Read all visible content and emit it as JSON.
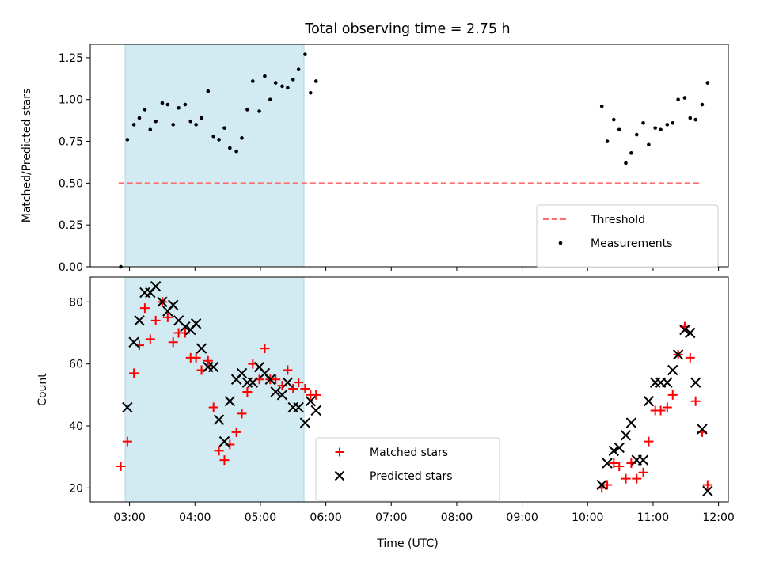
{
  "chart_data": {
    "type": "scatter",
    "title": "Total observing time = 2.75 h",
    "xlabel": "Time (UTC)",
    "x_ticks": [
      "03:00",
      "04:00",
      "05:00",
      "06:00",
      "07:00",
      "08:00",
      "09:00",
      "10:00",
      "11:00",
      "12:00"
    ],
    "xlim": [
      "02:24",
      "12:09"
    ],
    "shaded_span": [
      "02:56",
      "05:40"
    ],
    "shade_color": "#add8e6",
    "panels": [
      {
        "ylabel": "Matched/Predicted stars",
        "ylim": [
          0,
          1.33
        ],
        "y_ticks": [
          "0.00",
          "0.25",
          "0.50",
          "0.75",
          "1.00",
          "1.25"
        ],
        "legend": {
          "placement": "lower right"
        },
        "threshold": {
          "name": "Threshold",
          "value": 0.5,
          "x": [
            "02:50",
            "11:42"
          ],
          "color": "#ff6e6e"
        },
        "series": [
          {
            "name": "Measurements",
            "marker": "dot",
            "color": "#000000",
            "points": [
              [
                "02:52",
                0.0
              ],
              [
                "02:58",
                0.76
              ],
              [
                "03:04",
                0.85
              ],
              [
                "03:09",
                0.89
              ],
              [
                "03:14",
                0.94
              ],
              [
                "03:19",
                0.82
              ],
              [
                "03:24",
                0.87
              ],
              [
                "03:30",
                0.98
              ],
              [
                "03:35",
                0.97
              ],
              [
                "03:40",
                0.85
              ],
              [
                "03:45",
                0.95
              ],
              [
                "03:51",
                0.97
              ],
              [
                "03:56",
                0.87
              ],
              [
                "04:01",
                0.85
              ],
              [
                "04:06",
                0.89
              ],
              [
                "04:12",
                1.05
              ],
              [
                "04:17",
                0.78
              ],
              [
                "04:22",
                0.76
              ],
              [
                "04:27",
                0.83
              ],
              [
                "04:32",
                0.71
              ],
              [
                "04:38",
                0.69
              ],
              [
                "04:43",
                0.77
              ],
              [
                "04:48",
                0.94
              ],
              [
                "04:53",
                1.11
              ],
              [
                "04:59",
                0.93
              ],
              [
                "05:04",
                1.14
              ],
              [
                "05:09",
                1.0
              ],
              [
                "05:14",
                1.1
              ],
              [
                "05:20",
                1.08
              ],
              [
                "05:25",
                1.07
              ],
              [
                "05:30",
                1.12
              ],
              [
                "05:35",
                1.18
              ],
              [
                "05:41",
                1.27
              ],
              [
                "05:46",
                1.04
              ],
              [
                "05:51",
                1.11
              ],
              [
                "10:13",
                0.96
              ],
              [
                "10:18",
                0.75
              ],
              [
                "10:24",
                0.88
              ],
              [
                "10:29",
                0.82
              ],
              [
                "10:35",
                0.62
              ],
              [
                "10:40",
                0.68
              ],
              [
                "10:45",
                0.79
              ],
              [
                "10:51",
                0.86
              ],
              [
                "10:56",
                0.73
              ],
              [
                "11:02",
                0.83
              ],
              [
                "11:07",
                0.82
              ],
              [
                "11:13",
                0.85
              ],
              [
                "11:18",
                0.86
              ],
              [
                "11:23",
                1.0
              ],
              [
                "11:29",
                1.01
              ],
              [
                "11:34",
                0.89
              ],
              [
                "11:39",
                0.88
              ],
              [
                "11:45",
                0.97
              ],
              [
                "11:50",
                1.1
              ]
            ]
          }
        ]
      },
      {
        "ylabel": "Count",
        "ylim": [
          15.5,
          88
        ],
        "y_ticks": [
          "20",
          "40",
          "60",
          "80"
        ],
        "legend": {
          "placement": "lower center"
        },
        "series": [
          {
            "name": "Matched stars",
            "marker": "plus",
            "color": "#ff0000",
            "points": [
              [
                "02:52",
                27
              ],
              [
                "02:58",
                35
              ],
              [
                "03:04",
                57
              ],
              [
                "03:09",
                66
              ],
              [
                "03:14",
                78
              ],
              [
                "03:19",
                68
              ],
              [
                "03:24",
                74
              ],
              [
                "03:30",
                80
              ],
              [
                "03:35",
                75
              ],
              [
                "03:40",
                67
              ],
              [
                "03:45",
                70
              ],
              [
                "03:51",
                70
              ],
              [
                "03:56",
                62
              ],
              [
                "04:01",
                62
              ],
              [
                "04:06",
                58
              ],
              [
                "04:12",
                61
              ],
              [
                "04:17",
                46
              ],
              [
                "04:22",
                32
              ],
              [
                "04:27",
                29
              ],
              [
                "04:32",
                34
              ],
              [
                "04:38",
                38
              ],
              [
                "04:43",
                44
              ],
              [
                "04:48",
                51
              ],
              [
                "04:53",
                60
              ],
              [
                "04:59",
                55
              ],
              [
                "05:04",
                65
              ],
              [
                "05:09",
                55
              ],
              [
                "05:14",
                55
              ],
              [
                "05:20",
                53
              ],
              [
                "05:25",
                58
              ],
              [
                "05:30",
                52
              ],
              [
                "05:35",
                54
              ],
              [
                "05:41",
                52
              ],
              [
                "05:46",
                50
              ],
              [
                "05:51",
                50
              ],
              [
                "10:13",
                20
              ],
              [
                "10:18",
                21
              ],
              [
                "10:24",
                28
              ],
              [
                "10:29",
                27
              ],
              [
                "10:35",
                23
              ],
              [
                "10:40",
                28
              ],
              [
                "10:45",
                23
              ],
              [
                "10:51",
                25
              ],
              [
                "10:56",
                35
              ],
              [
                "11:02",
                45
              ],
              [
                "11:07",
                45
              ],
              [
                "11:13",
                46
              ],
              [
                "11:18",
                50
              ],
              [
                "11:23",
                63
              ],
              [
                "11:29",
                72
              ],
              [
                "11:34",
                62
              ],
              [
                "11:39",
                48
              ],
              [
                "11:45",
                38
              ],
              [
                "11:50",
                21
              ]
            ]
          },
          {
            "name": "Predicted stars",
            "marker": "x",
            "color": "#000000",
            "points": [
              [
                "02:58",
                46
              ],
              [
                "03:04",
                67
              ],
              [
                "03:09",
                74
              ],
              [
                "03:14",
                83
              ],
              [
                "03:19",
                83
              ],
              [
                "03:24",
                85
              ],
              [
                "03:30",
                80
              ],
              [
                "03:35",
                77
              ],
              [
                "03:40",
                79
              ],
              [
                "03:45",
                74
              ],
              [
                "03:51",
                72
              ],
              [
                "03:56",
                71
              ],
              [
                "04:01",
                73
              ],
              [
                "04:06",
                65
              ],
              [
                "04:12",
                59
              ],
              [
                "04:17",
                59
              ],
              [
                "04:22",
                42
              ],
              [
                "04:27",
                35
              ],
              [
                "04:32",
                48
              ],
              [
                "04:38",
                55
              ],
              [
                "04:43",
                57
              ],
              [
                "04:48",
                54
              ],
              [
                "04:53",
                54
              ],
              [
                "04:59",
                59
              ],
              [
                "05:04",
                57
              ],
              [
                "05:09",
                55
              ],
              [
                "05:14",
                51
              ],
              [
                "05:20",
                50
              ],
              [
                "05:25",
                54
              ],
              [
                "05:30",
                46
              ],
              [
                "05:35",
                46
              ],
              [
                "05:41",
                41
              ],
              [
                "05:46",
                48
              ],
              [
                "05:51",
                45
              ],
              [
                "10:13",
                21
              ],
              [
                "10:18",
                28
              ],
              [
                "10:24",
                32
              ],
              [
                "10:29",
                33
              ],
              [
                "10:35",
                37
              ],
              [
                "10:40",
                41
              ],
              [
                "10:45",
                29
              ],
              [
                "10:51",
                29
              ],
              [
                "10:56",
                48
              ],
              [
                "11:02",
                54
              ],
              [
                "11:07",
                54
              ],
              [
                "11:13",
                54
              ],
              [
                "11:18",
                58
              ],
              [
                "11:23",
                63
              ],
              [
                "11:29",
                71
              ],
              [
                "11:34",
                70
              ],
              [
                "11:39",
                54
              ],
              [
                "11:45",
                39
              ],
              [
                "11:50",
                19
              ]
            ]
          }
        ]
      }
    ]
  }
}
